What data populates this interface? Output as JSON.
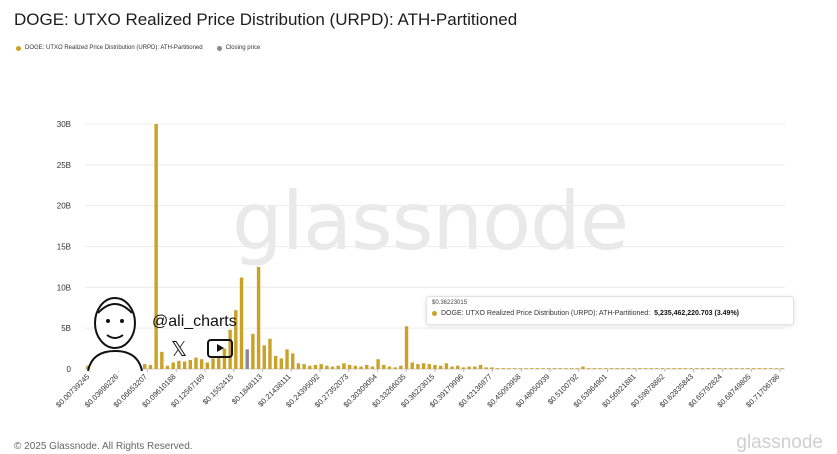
{
  "header": {
    "title": "DOGE: UTXO Realized Price Distribution (URPD): ATH-Partitioned"
  },
  "legend": {
    "items": [
      {
        "label": "DOGE: UTXO Realized Price Distribution (URPD): ATH-Partitioned",
        "color": "#c9a227"
      },
      {
        "label": "Closing price",
        "color": "#8a8a8a"
      }
    ]
  },
  "watermark": "glassnode",
  "footer": {
    "copyright": "© 2025 Glassnode. All Rights Reserved.",
    "brand": "glassnode"
  },
  "overlay": {
    "handle": "@ali_charts",
    "x_icon": "x-logo-icon",
    "youtube_icon": "youtube-icon"
  },
  "tooltip": {
    "price": "$0.36223015",
    "series_label": "DOGE: UTXO Realized Price Distribution (URPD): ATH-Partitioned:",
    "value": "5,235,462,220.703 (3.49%)"
  },
  "chart_data": {
    "type": "bar",
    "title": "DOGE: UTXO Realized Price Distribution (URPD): ATH-Partitioned",
    "xlabel": "",
    "ylabel": "",
    "ylim": [
      0,
      30000000000
    ],
    "y_ticks": [
      {
        "value": 0,
        "label": "0"
      },
      {
        "value": 5000000000,
        "label": "5B"
      },
      {
        "value": 10000000000,
        "label": "10B"
      },
      {
        "value": 15000000000,
        "label": "15B"
      },
      {
        "value": 20000000000,
        "label": "20B"
      },
      {
        "value": 25000000000,
        "label": "25B"
      },
      {
        "value": 30000000000,
        "label": "30B"
      }
    ],
    "grid": true,
    "x_tick_labels": [
      "$0.00739245",
      "$0.03696226",
      "$0.06653207",
      "$0.09610188",
      "$0.12567169",
      "$0.1552415",
      "$0.1848113",
      "$0.21438111",
      "$0.24395092",
      "$0.27352073",
      "$0.30309054",
      "$0.33266035",
      "$0.36223015",
      "$0.39179996",
      "$0.42136977",
      "$0.45093958",
      "$0.48050939",
      "$0.5100792",
      "$0.53964901",
      "$0.56921881",
      "$0.59878862",
      "$0.62835843",
      "$0.65792824",
      "$0.68749805",
      "$0.71706786"
    ],
    "closing_bucket_index": 28,
    "series": [
      {
        "name": "DOGE: UTXO Realized Price Distribution (URPD): ATH-Partitioned",
        "color": "#c9a227",
        "values": [
          400000000.0,
          200000000.0,
          300000000.0,
          500000000.0,
          400000000.0,
          300000000.0,
          300000000.0,
          200000000.0,
          400000000.0,
          500000000.0,
          600000000.0,
          500000000.0,
          30000000000.0,
          2100000000.0,
          400000000.0,
          800000000.0,
          1000000000.0,
          900000000.0,
          1100000000.0,
          1400000000.0,
          1200000000.0,
          800000000.0,
          1300000000.0,
          1600000000.0,
          2500000000.0,
          4800000000.0,
          7200000000.0,
          11200000000.0,
          5600000000.0,
          4300000000.0,
          12500000000.0,
          2900000000.0,
          3700000000.0,
          1600000000.0,
          1300000000.0,
          2400000000.0,
          1900000000.0,
          700000000.0,
          600000000.0,
          400000000.0,
          500000000.0,
          600000000.0,
          400000000.0,
          300000000.0,
          400000000.0,
          700000000.0,
          500000000.0,
          400000000.0,
          300000000.0,
          500000000.0,
          300000000.0,
          1200000000.0,
          500000000.0,
          300000000.0,
          200000000.0,
          400000000.0,
          5240000000.0,
          800000000.0,
          600000000.0,
          700000000.0,
          600000000.0,
          500000000.0,
          400000000.0,
          700000000.0,
          300000000.0,
          400000000.0,
          200000000.0,
          300000000.0,
          300000000.0,
          500000000.0,
          200000000.0,
          200000000.0,
          100000000.0,
          100000000.0,
          100000000.0,
          100000000.0,
          100000000.0,
          100000000.0,
          100000000.0,
          100000000.0,
          100000000.0,
          100000000.0,
          100000000.0,
          100000000.0,
          100000000.0,
          100000000.0,
          100000000.0,
          300000000.0,
          100000000.0,
          100000000.0,
          100000000.0,
          100000000.0,
          100000000.0,
          100000000.0,
          100000000.0,
          100000000.0,
          100000000.0,
          100000000.0,
          100000000.0,
          100000000.0,
          100000000.0,
          100000000.0,
          100000000.0,
          100000000.0,
          100000000.0,
          100000000.0,
          100000000.0,
          100000000.0,
          100000000.0,
          100000000.0,
          100000000.0,
          100000000.0,
          100000000.0,
          100000000.0,
          100000000.0,
          100000000.0,
          100000000.0,
          100000000.0,
          100000000.0,
          100000000.0,
          100000000.0,
          100000000.0,
          100000000.0
        ]
      },
      {
        "name": "Closing price",
        "color": "#8a8a8a",
        "values_at_closing_bucket": 2400000000.0
      }
    ]
  }
}
